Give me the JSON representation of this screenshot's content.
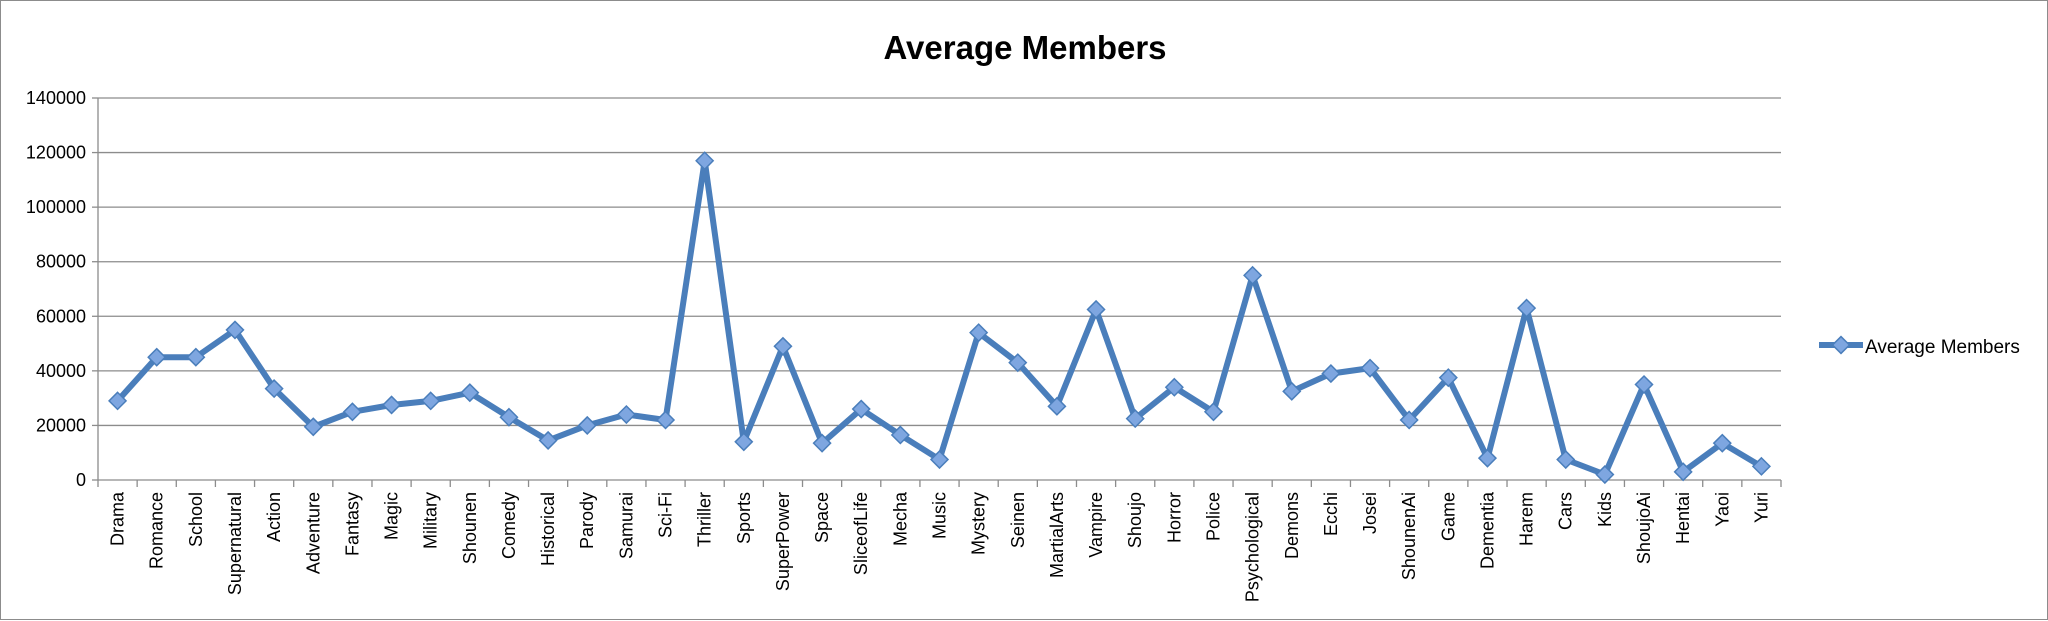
{
  "chart_data": {
    "type": "line",
    "title": "Average Members",
    "xlabel": "",
    "ylabel": "",
    "ylim": [
      0,
      140000
    ],
    "yticks": [
      0,
      20000,
      40000,
      60000,
      80000,
      100000,
      120000,
      140000
    ],
    "grid": true,
    "legend_position": "right",
    "categories": [
      "Drama",
      "Romance",
      "School",
      "Supernatural",
      "Action",
      "Adventure",
      "Fantasy",
      "Magic",
      "Military",
      "Shounen",
      "Comedy",
      "Historical",
      "Parody",
      "Samurai",
      "Sci-Fi",
      "Thriller",
      "Sports",
      "SuperPower",
      "Space",
      "SliceofLife",
      "Mecha",
      "Music",
      "Mystery",
      "Seinen",
      "MartialArts",
      "Vampire",
      "Shoujo",
      "Horror",
      "Police",
      "Psychological",
      "Demons",
      "Ecchi",
      "Josei",
      "ShounenAi",
      "Game",
      "Dementia",
      "Harem",
      "Cars",
      "Kids",
      "ShoujoAi",
      "Hentai",
      "Yaoi",
      "Yuri"
    ],
    "series": [
      {
        "name": "Average Members",
        "color": "#4a7ebb",
        "marker_color": "#7ea6e0",
        "values": [
          29000,
          45000,
          45000,
          55000,
          33500,
          19500,
          25000,
          27500,
          29000,
          32000,
          23000,
          14500,
          20000,
          24000,
          22000,
          117000,
          14000,
          49000,
          13500,
          26000,
          16500,
          7500,
          54000,
          43000,
          27000,
          62500,
          22500,
          34000,
          25000,
          75000,
          32500,
          39000,
          41000,
          22000,
          37500,
          8000,
          63000,
          7500,
          2000,
          35000,
          3000,
          13500,
          5000
        ]
      }
    ]
  }
}
